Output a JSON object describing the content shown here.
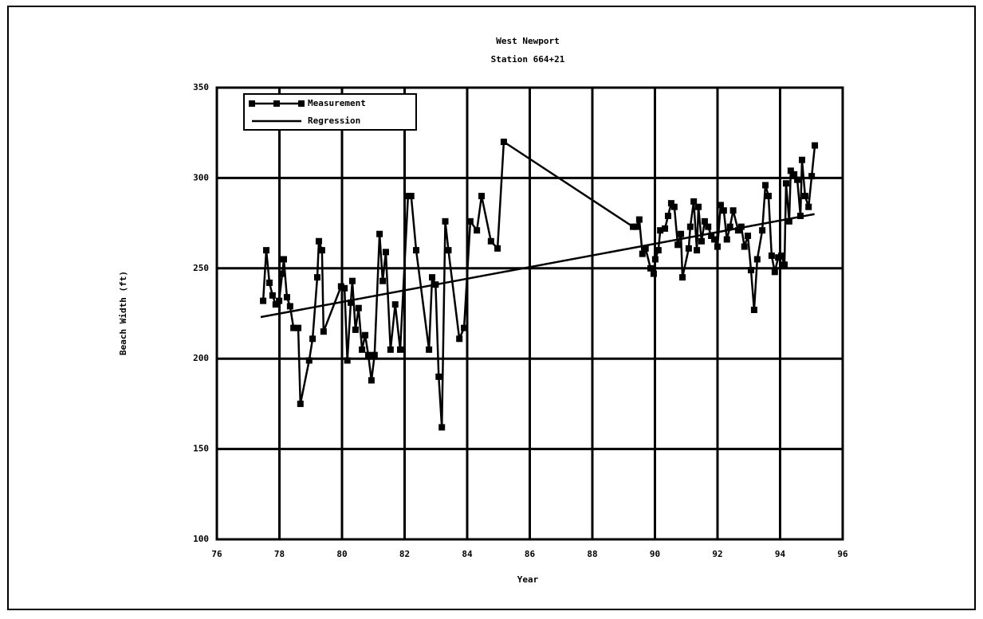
{
  "chart_data": {
    "type": "line",
    "title": "West Newport",
    "subtitle": "Station 664+21",
    "x_label": "Year",
    "y_label": "Beach Width (ft)",
    "xlim": [
      76,
      96
    ],
    "xticks": [
      76,
      78,
      80,
      82,
      84,
      86,
      88,
      90,
      92,
      94,
      96
    ],
    "ylim": [
      100,
      350
    ],
    "yticks": [
      100,
      150,
      200,
      250,
      300,
      350
    ],
    "grid": true,
    "legend": "upper left",
    "series": [
      {
        "name": "Measurement",
        "color": "#000000",
        "marker": "square",
        "x": [
          77.48,
          77.58,
          77.68,
          77.78,
          77.88,
          77.99,
          78.09,
          78.14,
          78.24,
          78.34,
          78.45,
          78.6,
          78.67,
          78.95,
          79.06,
          79.21,
          79.26,
          79.36,
          79.41,
          79.97,
          80.08,
          80.17,
          80.28,
          80.33,
          80.43,
          80.53,
          80.64,
          80.74,
          80.84,
          80.94,
          81.04,
          81.2,
          81.3,
          81.4,
          81.55,
          81.7,
          81.86,
          82.11,
          82.21,
          82.37,
          82.78,
          82.88,
          82.99,
          83.09,
          83.19,
          83.3,
          83.4,
          83.75,
          83.9,
          84.1,
          84.31,
          84.46,
          84.76,
          84.97,
          85.17,
          89.3,
          89.4,
          89.5,
          89.6,
          89.7,
          89.86,
          89.96,
          90.01,
          90.11,
          90.17,
          90.32,
          90.42,
          90.52,
          90.62,
          90.73,
          90.83,
          90.88,
          91.08,
          91.13,
          91.24,
          91.34,
          91.39,
          91.49,
          91.59,
          91.7,
          91.8,
          91.9,
          92.0,
          92.1,
          92.2,
          92.3,
          92.4,
          92.5,
          92.66,
          92.76,
          92.86,
          92.97,
          93.07,
          93.17,
          93.27,
          93.43,
          93.53,
          93.63,
          93.73,
          93.83,
          93.94,
          94.04,
          94.14,
          94.19,
          94.29,
          94.34,
          94.45,
          94.55,
          94.65,
          94.7,
          94.8,
          94.91,
          95.01,
          95.11
        ],
        "values": [
          232,
          260,
          242,
          235,
          230,
          232,
          247,
          255,
          234,
          229,
          217,
          217,
          175,
          199,
          211,
          245,
          265,
          260,
          215,
          240,
          239,
          199,
          231,
          243,
          216,
          228,
          205,
          213,
          202,
          188,
          202,
          269,
          243,
          259,
          205,
          230,
          205,
          290,
          290,
          260,
          205,
          245,
          241,
          190,
          162,
          276,
          260,
          211,
          217,
          276,
          271,
          290,
          265,
          261,
          320,
          273,
          273,
          277,
          258,
          261,
          250,
          247,
          255,
          260,
          271,
          272,
          279,
          286,
          284,
          263,
          269,
          245,
          261,
          273,
          287,
          260,
          284,
          265,
          276,
          273,
          268,
          266,
          262,
          285,
          282,
          266,
          273,
          282,
          271,
          273,
          262,
          268,
          249,
          227,
          255,
          271,
          296,
          290,
          257,
          248,
          256,
          257,
          252,
          297,
          276,
          304,
          302,
          299,
          279,
          310,
          290,
          284,
          301,
          318
        ]
      },
      {
        "name": "Regression",
        "color": "#000000",
        "marker": "none",
        "x": [
          77.4,
          95.1
        ],
        "values": [
          223,
          280
        ]
      }
    ]
  }
}
